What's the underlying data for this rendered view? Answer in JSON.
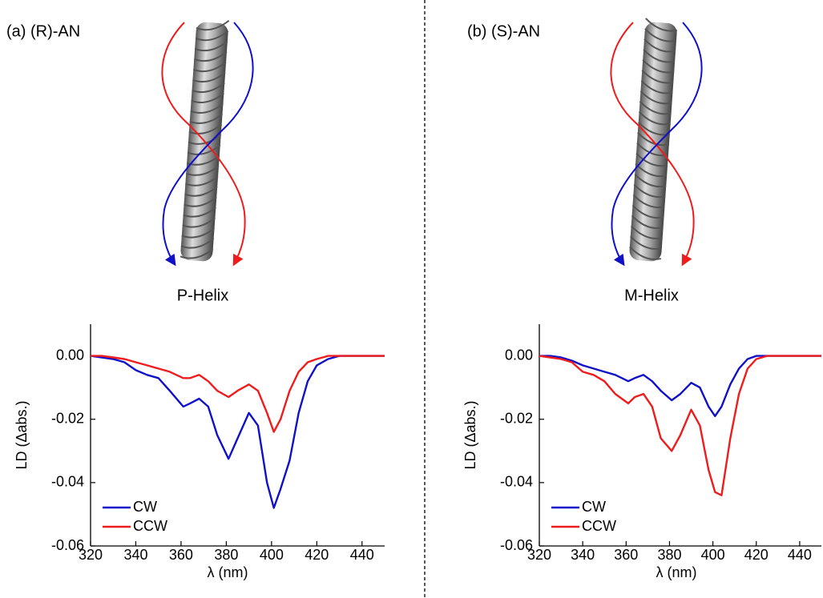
{
  "chart_data": [
    {
      "type": "line",
      "title": "(a) (R)-AN",
      "helix_label": "P-Helix",
      "x_label": "λ (nm)",
      "y_label": "LD (Δabs.)",
      "x": [
        320,
        325,
        330,
        335,
        340,
        345,
        350,
        355,
        361,
        364,
        368,
        372,
        376,
        381,
        385,
        390,
        394,
        398,
        401,
        404,
        408,
        412,
        416,
        420,
        425,
        430,
        440,
        450
      ],
      "series": [
        {
          "name": "CW",
          "color": "#1010c8",
          "values": [
            0,
            -0.0005,
            -0.001,
            -0.002,
            -0.0045,
            -0.006,
            -0.007,
            -0.011,
            -0.016,
            -0.015,
            -0.0135,
            -0.016,
            -0.025,
            -0.0325,
            -0.026,
            -0.018,
            -0.022,
            -0.04,
            -0.048,
            -0.042,
            -0.033,
            -0.018,
            -0.008,
            -0.003,
            -0.001,
            0,
            0,
            0
          ]
        },
        {
          "name": "CCW",
          "color": "#ee1c1c",
          "values": [
            0,
            0,
            -0.0005,
            -0.001,
            -0.002,
            -0.003,
            -0.004,
            -0.005,
            -0.007,
            -0.007,
            -0.006,
            -0.008,
            -0.011,
            -0.013,
            -0.011,
            -0.009,
            -0.011,
            -0.018,
            -0.024,
            -0.02,
            -0.011,
            -0.005,
            -0.002,
            -0.001,
            0,
            0,
            0,
            0
          ]
        }
      ],
      "xlim": [
        320,
        450
      ],
      "ylim": [
        -0.06,
        0.01
      ],
      "xticks": [
        320,
        340,
        360,
        380,
        400,
        420,
        440
      ],
      "yticks": [
        {
          "value": 0,
          "label": "0.00"
        },
        {
          "value": -0.02,
          "label": "-0.02"
        },
        {
          "value": -0.04,
          "label": "-0.04"
        },
        {
          "value": -0.06,
          "label": "-0.06"
        }
      ],
      "legend": "lower left"
    },
    {
      "type": "line",
      "title": "(b) (S)-AN",
      "helix_label": "M-Helix",
      "x_label": "λ (nm)",
      "y_label": "LD (Δabs.)",
      "x": [
        320,
        325,
        330,
        335,
        340,
        345,
        350,
        355,
        361,
        364,
        368,
        372,
        376,
        381,
        385,
        390,
        394,
        398,
        401,
        404,
        408,
        412,
        416,
        420,
        425,
        430,
        440,
        450
      ],
      "series": [
        {
          "name": "CW",
          "color": "#1010c8",
          "values": [
            0,
            0,
            -0.0005,
            -0.0015,
            -0.003,
            -0.004,
            -0.005,
            -0.006,
            -0.008,
            -0.007,
            -0.006,
            -0.008,
            -0.011,
            -0.014,
            -0.012,
            -0.0085,
            -0.01,
            -0.016,
            -0.019,
            -0.016,
            -0.009,
            -0.004,
            -0.001,
            0,
            0,
            0,
            0,
            0
          ]
        },
        {
          "name": "CCW",
          "color": "#ee1c1c",
          "values": [
            0,
            -0.0005,
            -0.001,
            -0.002,
            -0.005,
            -0.006,
            -0.008,
            -0.012,
            -0.015,
            -0.013,
            -0.012,
            -0.016,
            -0.026,
            -0.03,
            -0.025,
            -0.017,
            -0.022,
            -0.036,
            -0.043,
            -0.044,
            -0.026,
            -0.012,
            -0.004,
            -0.001,
            0,
            0,
            0,
            0
          ]
        }
      ],
      "xlim": [
        320,
        450
      ],
      "ylim": [
        -0.06,
        0.01
      ],
      "xticks": [
        320,
        340,
        360,
        380,
        400,
        420,
        440
      ],
      "yticks": [
        {
          "value": 0,
          "label": "0.00"
        },
        {
          "value": -0.02,
          "label": "-0.02"
        },
        {
          "value": -0.04,
          "label": "-0.04"
        },
        {
          "value": -0.06,
          "label": "-0.06"
        }
      ],
      "legend": "lower left"
    }
  ]
}
